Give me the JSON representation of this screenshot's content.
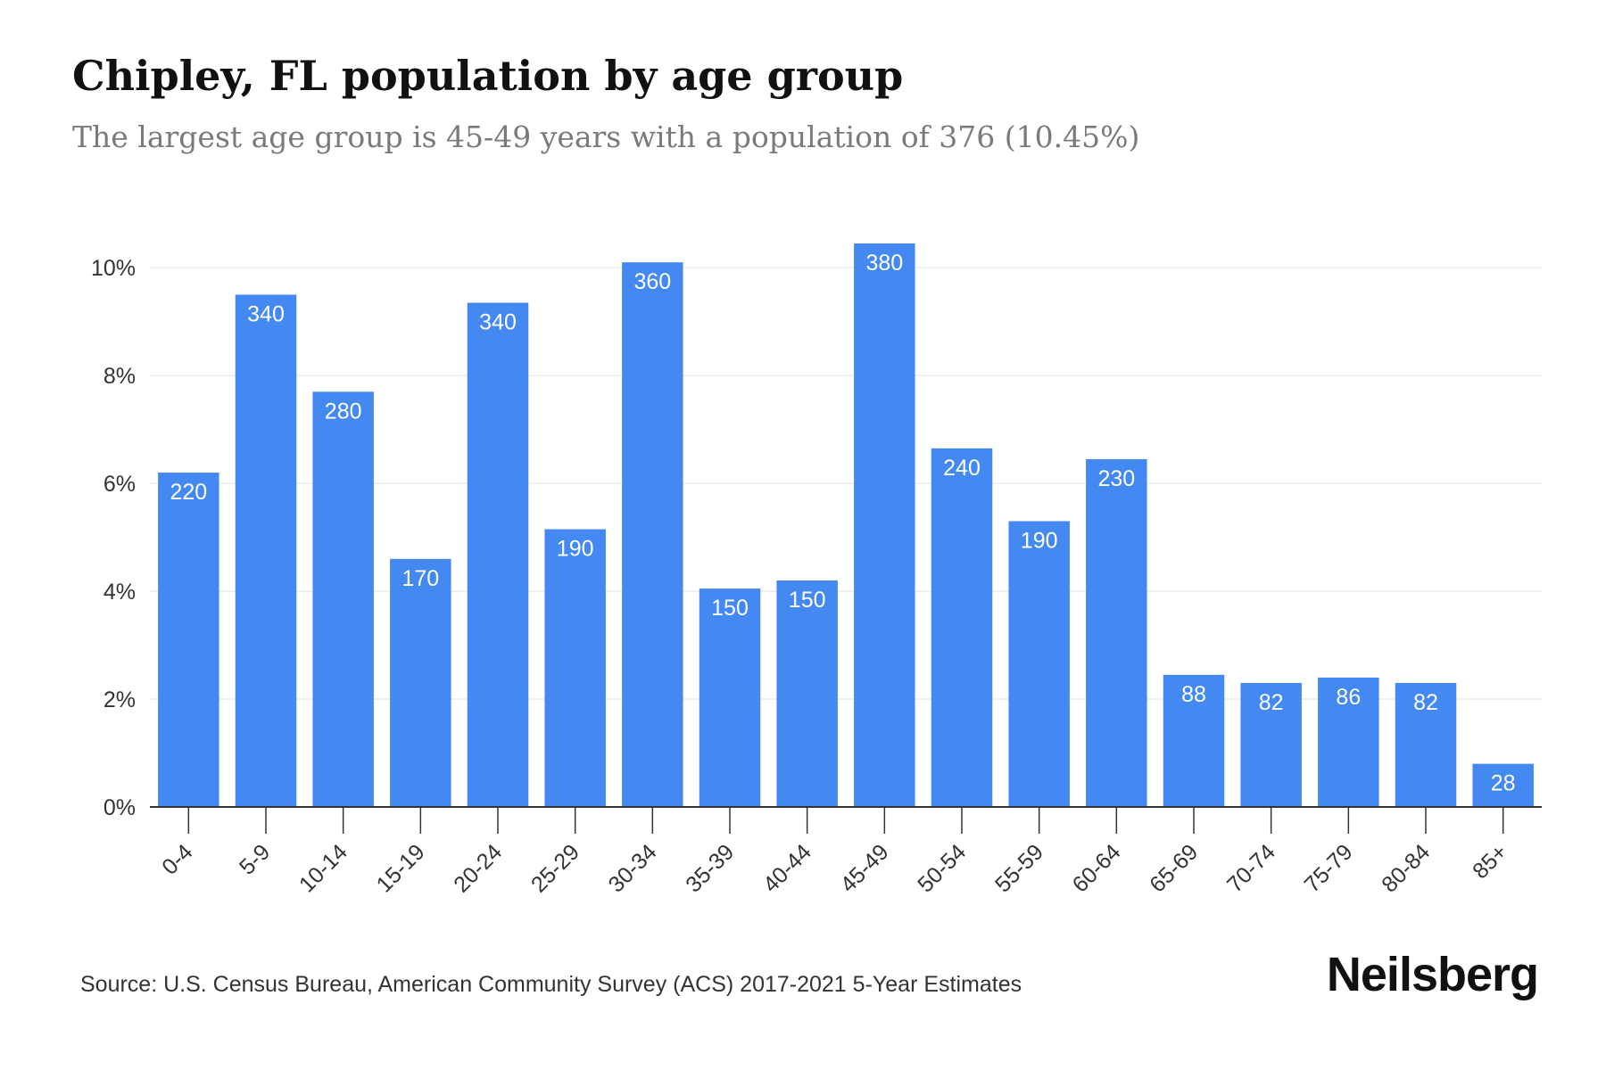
{
  "header": {
    "title": "Chipley, FL population by age group",
    "subtitle": "The largest age group is 45-49 years with a population of 376 (10.45%)"
  },
  "footer": {
    "source": "Source: U.S. Census Bureau, American Community Survey (ACS) 2017-2021 5-Year Estimates",
    "brand": "Neilsberg"
  },
  "colors": {
    "bar": "#4488f2",
    "bar_label": "#ffffff",
    "grid": "#ececec",
    "axis": "#333333",
    "tick_text": "#333333"
  },
  "chart_data": {
    "type": "bar",
    "title": "Chipley, FL population by age group",
    "subtitle": "The largest age group is 45-49 years with a population of 376 (10.45%)",
    "xlabel": "",
    "ylabel": "",
    "ylim": [
      0,
      10.5
    ],
    "yticks": [
      0,
      2,
      4,
      6,
      8,
      10
    ],
    "ytick_labels": [
      "0%",
      "2%",
      "4%",
      "6%",
      "8%",
      "10%"
    ],
    "grid": true,
    "categories": [
      "0-4",
      "5-9",
      "10-14",
      "15-19",
      "20-24",
      "25-29",
      "30-34",
      "35-39",
      "40-44",
      "45-49",
      "50-54",
      "55-59",
      "60-64",
      "65-69",
      "70-74",
      "75-79",
      "80-84",
      "85+"
    ],
    "values": [
      6.2,
      9.5,
      7.7,
      4.6,
      9.35,
      5.15,
      10.1,
      4.05,
      4.2,
      10.45,
      6.65,
      5.3,
      6.45,
      2.45,
      2.3,
      2.4,
      2.3,
      0.8
    ],
    "data_labels": [
      "220",
      "340",
      "280",
      "170",
      "340",
      "190",
      "360",
      "150",
      "150",
      "380",
      "240",
      "190",
      "230",
      "88",
      "82",
      "86",
      "82",
      "28"
    ]
  }
}
